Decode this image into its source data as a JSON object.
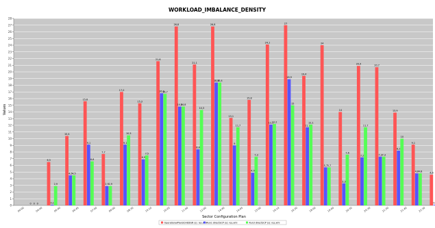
{
  "chart_data": {
    "type": "bar",
    "title": "WORKLOAD_IMBALANCE_DENSITY",
    "xlabel": "Sector Configuration Plan",
    "ylabel": "Values",
    "ylim": [
      0,
      28
    ],
    "yticks": [
      0,
      1,
      2,
      3,
      4,
      5,
      6,
      7,
      8,
      9,
      10,
      11,
      12,
      13,
      14,
      15,
      16,
      17,
      18,
      19,
      20,
      21,
      22,
      23,
      24,
      25,
      26,
      27,
      28
    ],
    "grid": true,
    "legend_position": "bottom",
    "categories": [
      "00:00",
      "04:40",
      "06:40",
      "06:45",
      "07:00",
      "08:00",
      "08:30",
      "10:10",
      "10:20",
      "11:40",
      "12:00",
      "14:40",
      "14:45",
      "15:00",
      "16:14",
      "16:30",
      "18:00",
      "19:00",
      "20:30",
      "20:30",
      "21:30",
      "21:40",
      "22:30"
    ],
    "series": [
      {
        "name": "OperationalPlanSCHEDGR (s): res.xml",
        "color": "#ff5555",
        "values": [
          0,
          6.5,
          10.4,
          15.6,
          7.7,
          17.0,
          15.3,
          21.6,
          26.8,
          21.1,
          26.8,
          13.1,
          15.8,
          24.1,
          27.0,
          19.4,
          24.0,
          14.0,
          20.9,
          20.7,
          13.9,
          9.1,
          4.6
        ]
      },
      {
        "name": "Run1 directSCP (s): res.xml",
        "color": "#5555ff",
        "values": [
          0,
          0.1,
          4.5,
          9.1,
          2.9,
          9.1,
          6.9,
          16.8,
          14.8,
          8.4,
          18.4,
          9.0,
          4.9,
          12.1,
          18.9,
          11.7,
          5.7,
          3.3,
          7.2,
          7.3,
          8.2,
          4.8,
          0.1
        ]
      },
      {
        "name": "Run3 directSCP (s): res.xml",
        "color": "#55ff55",
        "values": [
          0,
          2.9,
          4.5,
          6.6,
          2.9,
          10.5,
          7.5,
          16.7,
          14.8,
          14.3,
          18.4,
          11.7,
          7.3,
          12.2,
          15.0,
          12.1,
          5.7,
          7.6,
          11.7,
          7.3,
          10.0,
          4.8,
          3.6
        ]
      }
    ],
    "bar_labels": [
      [
        "0",
        "6,5",
        "10,4",
        "15,6",
        "7,7",
        "17,0",
        "15,3",
        "21,6",
        "26,8",
        "21,1",
        "26,8",
        "13,1",
        "15,8",
        "24,1",
        "27",
        "19,4",
        "24",
        "14",
        "20,9",
        "20,7",
        "13,9",
        "9,1",
        "4,6"
      ],
      [
        "0",
        "0,1",
        "4,5",
        "9,1",
        "2,9",
        "9,1",
        "6,9",
        "16,8",
        "14,8",
        "8,4",
        "18,4",
        "9",
        "4,9",
        "12,1",
        "18,9",
        "11,7",
        "5,7",
        "3,3",
        "7,2",
        "7,3",
        "8,2",
        "4,8",
        "0,1"
      ],
      [
        "0",
        "2,9",
        "4,5",
        "6,6",
        "2,9",
        "10,5",
        "7,5",
        "16,7",
        "14,8",
        "14,3",
        "18,4",
        "11,7",
        "7,3",
        "12,2",
        "15",
        "12,1",
        "5,7",
        "7,6",
        "11,7",
        "7,3",
        "10",
        "4,8",
        "3,6"
      ]
    ],
    "plot_background": "#c8c8c8",
    "grid_color": "#ffffff"
  }
}
